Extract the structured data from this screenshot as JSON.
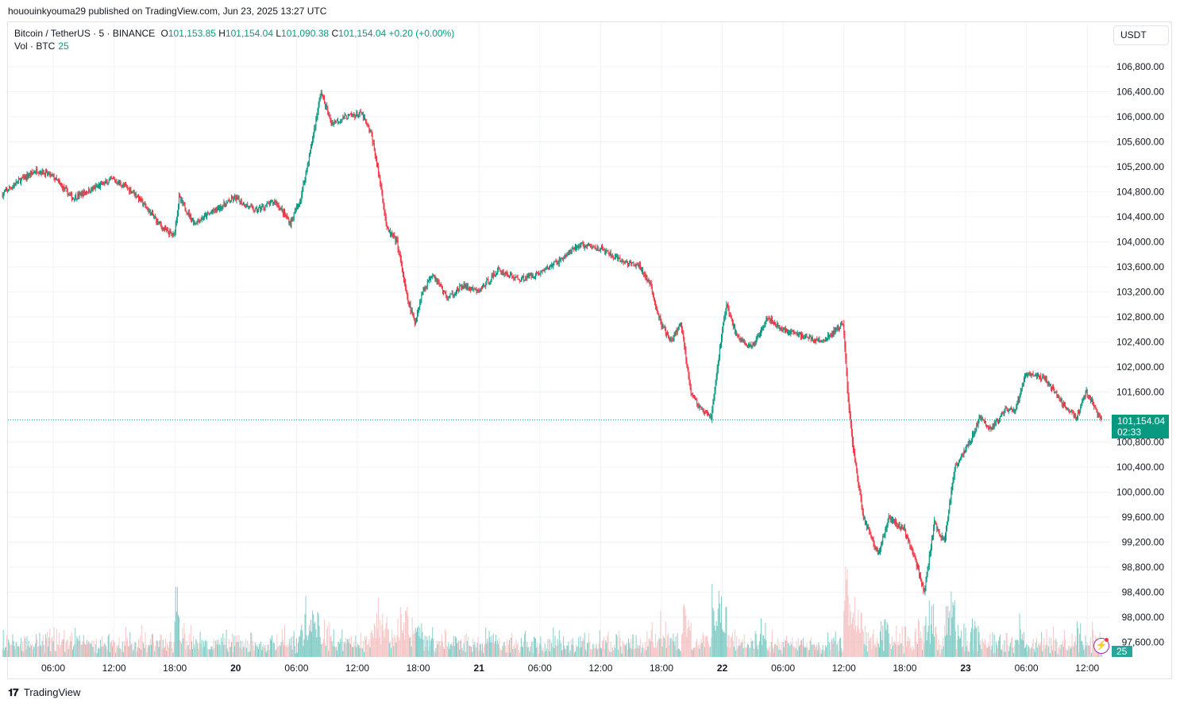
{
  "header": {
    "publisher_line": "hououinkyouma29 published on TradingView.com, Jun 23, 2025 13:27 UTC"
  },
  "legend": {
    "symbol": "Bitcoin / TetherUS · 5 · BINANCE",
    "open_label": "O",
    "open": "101,153.85",
    "high_label": "H",
    "high": "101,154.04",
    "low_label": "L",
    "low": "101,090.38",
    "close_label": "C",
    "close": "101,154.04",
    "change": "+0.20 (+0.00%)",
    "vol_label": "Vol · BTC",
    "vol_value": "25"
  },
  "currency_button": "USDT",
  "badges": {
    "last_price": "101,154.04",
    "countdown": "02:33",
    "volume": "25"
  },
  "colors": {
    "up": "#089981",
    "down": "#f23645",
    "vol_up": "#26a69a",
    "vol_down": "#ef9a9a",
    "grid": "#f0f3fa"
  },
  "chart_data": {
    "type": "candlestick",
    "y_ticks": [
      "106,800.00",
      "106,400.00",
      "106,000.00",
      "105,600.00",
      "105,200.00",
      "104,800.00",
      "104,400.00",
      "104,000.00",
      "103,600.00",
      "103,200.00",
      "102,800.00",
      "102,400.00",
      "102,000.00",
      "101,600.00",
      "100,800.00",
      "100,400.00",
      "100,000.00",
      "99,600.00",
      "99,200.00",
      "98,800.00",
      "98,400.00",
      "98,000.00",
      "97,600.00"
    ],
    "x_ticks": [
      "06:00",
      "12:00",
      "18:00",
      "20",
      "06:00",
      "12:00",
      "18:00",
      "21",
      "06:00",
      "12:00",
      "18:00",
      "22",
      "06:00",
      "12:00",
      "18:00",
      "23",
      "06:00",
      "12:00"
    ],
    "ylim": [
      97400,
      107200
    ],
    "last_price": 101154.04,
    "price_path": [
      [
        "Jun 19 01:00",
        104750
      ],
      [
        "Jun 19 02:30",
        104950
      ],
      [
        "Jun 19 04:30",
        105150
      ],
      [
        "Jun 19 06:00",
        105050
      ],
      [
        "Jun 19 08:00",
        104700
      ],
      [
        "Jun 19 10:00",
        104850
      ],
      [
        "Jun 19 12:00",
        105000
      ],
      [
        "Jun 19 14:00",
        104800
      ],
      [
        "Jun 19 15:30",
        104500
      ],
      [
        "Jun 19 17:00",
        104200
      ],
      [
        "Jun 19 18:00",
        104100
      ],
      [
        "Jun 19 18:30",
        104700
      ],
      [
        "Jun 19 20:00",
        104300
      ],
      [
        "Jun 19 22:00",
        104500
      ],
      [
        "Jun 20 00:00",
        104700
      ],
      [
        "Jun 20 02:00",
        104500
      ],
      [
        "Jun 20 04:00",
        104650
      ],
      [
        "Jun 20 05:30",
        104300
      ],
      [
        "Jun 20 06:30",
        104700
      ],
      [
        "Jun 20 07:30",
        105500
      ],
      [
        "Jun 20 08:30",
        106400
      ],
      [
        "Jun 20 09:30",
        105900
      ],
      [
        "Jun 20 11:00",
        106000
      ],
      [
        "Jun 20 12:30",
        106050
      ],
      [
        "Jun 20 13:30",
        105700
      ],
      [
        "Jun 20 14:30",
        104800
      ],
      [
        "Jun 20 15:00",
        104200
      ],
      [
        "Jun 20 16:00",
        104000
      ],
      [
        "Jun 20 17:00",
        103100
      ],
      [
        "Jun 20 17:45",
        102700
      ],
      [
        "Jun 20 18:30",
        103200
      ],
      [
        "Jun 20 19:30",
        103500
      ],
      [
        "Jun 20 21:00",
        103100
      ],
      [
        "Jun 20 22:30",
        103300
      ],
      [
        "Jun 21 00:00",
        103200
      ],
      [
        "Jun 21 02:00",
        103550
      ],
      [
        "Jun 21 04:00",
        103400
      ],
      [
        "Jun 21 06:00",
        103500
      ],
      [
        "Jun 21 08:00",
        103700
      ],
      [
        "Jun 21 10:00",
        103950
      ],
      [
        "Jun 21 12:00",
        103900
      ],
      [
        "Jun 21 14:00",
        103700
      ],
      [
        "Jun 21 16:00",
        103600
      ],
      [
        "Jun 21 17:00",
        103300
      ],
      [
        "Jun 21 18:00",
        102700
      ],
      [
        "Jun 21 19:00",
        102400
      ],
      [
        "Jun 21 20:00",
        102700
      ],
      [
        "Jun 21 21:00",
        101600
      ],
      [
        "Jun 21 22:00",
        101300
      ],
      [
        "Jun 21 23:00",
        101200
      ],
      [
        "Jun 22 00:00",
        102500
      ],
      [
        "Jun 22 00:30",
        103000
      ],
      [
        "Jun 22 01:30",
        102500
      ],
      [
        "Jun 22 03:00",
        102300
      ],
      [
        "Jun 22 04:30",
        102800
      ],
      [
        "Jun 22 06:00",
        102600
      ],
      [
        "Jun 22 08:00",
        102500
      ],
      [
        "Jun 22 10:00",
        102400
      ],
      [
        "Jun 22 12:00",
        102700
      ],
      [
        "Jun 22 12:30",
        101500
      ],
      [
        "Jun 22 13:00",
        100700
      ],
      [
        "Jun 22 14:00",
        99600
      ],
      [
        "Jun 22 15:30",
        99000
      ],
      [
        "Jun 22 16:30",
        99600
      ],
      [
        "Jun 22 18:00",
        99400
      ],
      [
        "Jun 22 19:00",
        99000
      ],
      [
        "Jun 22 20:00",
        98400
      ],
      [
        "Jun 22 21:00",
        99500
      ],
      [
        "Jun 22 22:00",
        99200
      ],
      [
        "Jun 22 23:00",
        100400
      ],
      [
        "Jun 23 00:30",
        100800
      ],
      [
        "Jun 23 01:30",
        101200
      ],
      [
        "Jun 23 02:30",
        101000
      ],
      [
        "Jun 23 04:00",
        101300
      ],
      [
        "Jun 23 05:00",
        101300
      ],
      [
        "Jun 23 06:00",
        101900
      ],
      [
        "Jun 23 08:00",
        101800
      ],
      [
        "Jun 23 10:00",
        101350
      ],
      [
        "Jun 23 11:00",
        101200
      ],
      [
        "Jun 23 12:00",
        101600
      ],
      [
        "Jun 23 13:27",
        101154
      ]
    ]
  },
  "footer": {
    "brand": "TradingView"
  }
}
